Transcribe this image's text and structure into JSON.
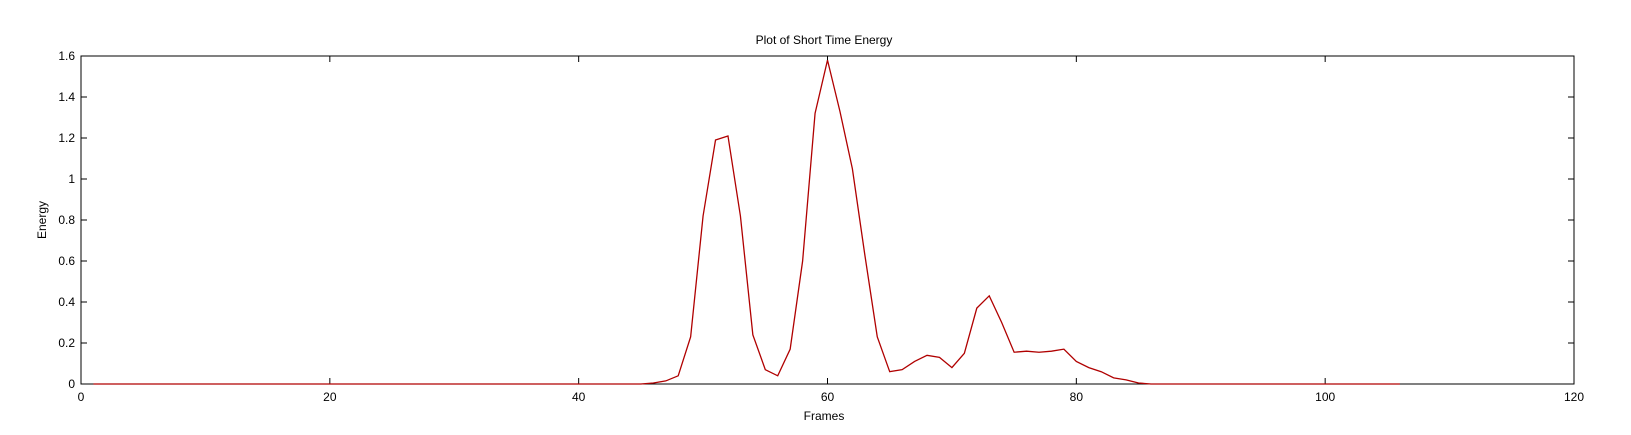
{
  "chart_data": {
    "type": "line",
    "title": "Plot of Short Time Energy",
    "xlabel": "Frames",
    "ylabel": "Energy",
    "xlim": [
      0,
      120
    ],
    "ylim": [
      0,
      1.6
    ],
    "xticks": [
      0,
      20,
      40,
      60,
      80,
      100,
      120
    ],
    "yticks": [
      0,
      0.2,
      0.4,
      0.6,
      0.8,
      1,
      1.2,
      1.4,
      1.6
    ],
    "xtick_labels": [
      "0",
      "20",
      "40",
      "60",
      "80",
      "100",
      "120"
    ],
    "ytick_labels": [
      "0",
      "0.2",
      "0.4",
      "0.6",
      "0.8",
      "1",
      "1.2",
      "1.4",
      "1.6"
    ],
    "grid": false,
    "series": [
      {
        "color": "#b00000",
        "x": [
          1,
          2,
          3,
          4,
          5,
          6,
          7,
          8,
          9,
          10,
          11,
          12,
          13,
          14,
          15,
          16,
          17,
          18,
          19,
          20,
          21,
          22,
          23,
          24,
          25,
          26,
          27,
          28,
          29,
          30,
          31,
          32,
          33,
          34,
          35,
          36,
          37,
          38,
          39,
          40,
          41,
          42,
          43,
          44,
          45,
          46,
          47,
          48,
          49,
          50,
          51,
          52,
          53,
          54,
          55,
          56,
          57,
          58,
          59,
          60,
          61,
          62,
          63,
          64,
          65,
          66,
          67,
          68,
          69,
          70,
          71,
          72,
          73,
          74,
          75,
          76,
          77,
          78,
          79,
          80,
          81,
          82,
          83,
          84,
          85,
          86,
          87,
          88,
          89,
          90,
          91,
          92,
          93,
          94,
          95,
          96,
          97,
          98,
          99,
          100,
          101,
          102,
          103,
          104,
          105,
          106
        ],
        "y": [
          0,
          0,
          0,
          0,
          0,
          0,
          0,
          0,
          0,
          0,
          0,
          0,
          0,
          0,
          0,
          0,
          0,
          0,
          0,
          0,
          0,
          0,
          0,
          0,
          0,
          0,
          0,
          0,
          0,
          0,
          0,
          0,
          0,
          0,
          0,
          0,
          0,
          0,
          0,
          0,
          0,
          0,
          0,
          0,
          0,
          0.005,
          0.015,
          0.04,
          0.23,
          0.82,
          1.19,
          1.21,
          0.82,
          0.24,
          0.07,
          0.04,
          0.17,
          0.6,
          1.32,
          1.58,
          1.33,
          1.05,
          0.63,
          0.23,
          0.06,
          0.07,
          0.11,
          0.14,
          0.13,
          0.08,
          0.15,
          0.37,
          0.43,
          0.3,
          0.155,
          0.16,
          0.155,
          0.16,
          0.17,
          0.11,
          0.08,
          0.06,
          0.03,
          0.02,
          0.005,
          0,
          0,
          0,
          0,
          0,
          0,
          0,
          0,
          0,
          0,
          0,
          0,
          0,
          0,
          0,
          0,
          0,
          0,
          0,
          0,
          0
        ]
      }
    ]
  }
}
